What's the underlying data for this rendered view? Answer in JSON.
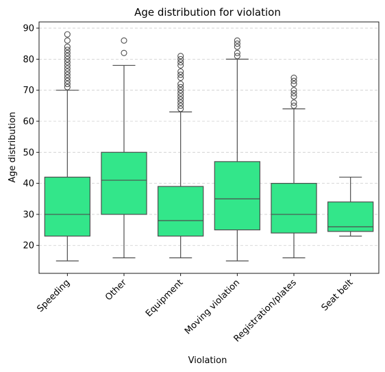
{
  "chart_data": {
    "type": "box",
    "title": "Age distribution for violation",
    "xlabel": "Violation",
    "ylabel": "Age distribution",
    "ylim": [
      11,
      92
    ],
    "yticks": [
      20,
      30,
      40,
      50,
      60,
      70,
      80,
      90
    ],
    "grid": {
      "y": true,
      "style": "dashed"
    },
    "box_color": "#33e68a",
    "line_color": "#4d4d4d",
    "categories": [
      "Speeding",
      "Other",
      "Equipment",
      "Moving violation",
      "Registration/plates",
      "Seat belt"
    ],
    "boxes": [
      {
        "label": "Speeding",
        "whisker_low": 15,
        "q1": 23,
        "median": 30,
        "q3": 42,
        "whisker_high": 70,
        "outliers": [
          71,
          72,
          73,
          74,
          75,
          76,
          77,
          78,
          79,
          80,
          81,
          82,
          83,
          84,
          86,
          88
        ]
      },
      {
        "label": "Other",
        "whisker_low": 16,
        "q1": 30,
        "median": 41,
        "q3": 50,
        "whisker_high": 78,
        "outliers": [
          82,
          86
        ]
      },
      {
        "label": "Equipment",
        "whisker_low": 16,
        "q1": 23,
        "median": 28,
        "q3": 39,
        "whisker_high": 63,
        "outliers": [
          64,
          65,
          66,
          67,
          68,
          69,
          70,
          71,
          72,
          74,
          75,
          76,
          78,
          79,
          80,
          81
        ]
      },
      {
        "label": "Moving violation",
        "whisker_low": 15,
        "q1": 25,
        "median": 35,
        "q3": 47,
        "whisker_high": 80,
        "outliers": [
          81,
          82,
          84,
          85,
          86
        ]
      },
      {
        "label": "Registration/plates",
        "whisker_low": 16,
        "q1": 24,
        "median": 30,
        "q3": 40,
        "whisker_high": 64,
        "outliers": [
          65,
          66,
          68,
          69,
          70,
          72,
          73,
          74
        ]
      },
      {
        "label": "Seat belt",
        "whisker_low": 23,
        "q1": 24.5,
        "median": 26,
        "q3": 34,
        "whisker_high": 42,
        "outliers": []
      }
    ]
  }
}
